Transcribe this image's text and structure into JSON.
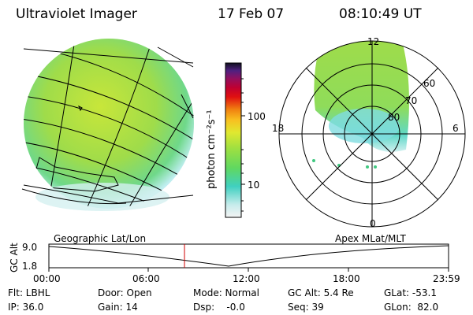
{
  "header": {
    "title": "Ultraviolet Imager",
    "date": "17 Feb 07",
    "time": "08:10:49 UT"
  },
  "colorbar": {
    "unit_label": "photon cm⁻²s⁻¹",
    "ticks": [
      "100",
      "10"
    ]
  },
  "polar_plot": {
    "mlt_labels": [
      "12",
      "18",
      "6",
      "0"
    ],
    "lat_labels": [
      "60",
      "70",
      "80"
    ]
  },
  "orbit_panel": {
    "left_label": "Geographic Lat/Lon",
    "right_label": "Apex MLat/MLT",
    "y_axis_label": "GC Alt",
    "y_ticks": [
      "9.0",
      "1.8"
    ],
    "x_ticks": [
      "00:00",
      "06:00",
      "12:00",
      "18:00",
      "23:59"
    ]
  },
  "info": {
    "flt": "Flt: LBHL",
    "ip": "IP: 36.0",
    "door": "Door: Open",
    "gain": "Gain: 14",
    "mode": "Mode: Normal",
    "dsp": "Dsp:    -0.0",
    "gcalt": "GC Alt: 5.4 Re",
    "seq": "Seq: 39",
    "glat": "GLat: -53.1",
    "glon": "GLon:  82.0"
  },
  "colors": {
    "image_green": "#9fe04a",
    "image_yellow": "#d8e83a",
    "cyan": "#5fd8d0",
    "marker_red": "#d00000"
  }
}
